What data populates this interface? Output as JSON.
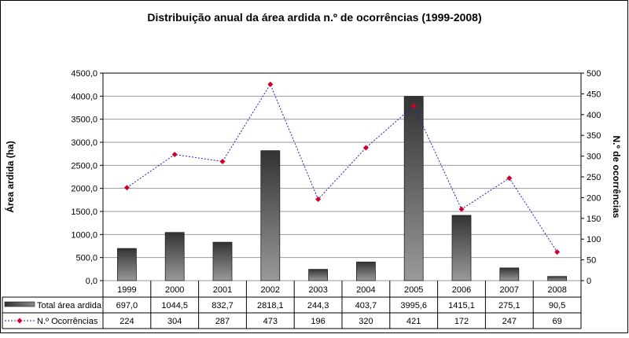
{
  "chart_data": {
    "type": "bar+line",
    "title": "Distribuição anual da área ardida n.º de ocorrências (1999-2008)",
    "ylabel": "Área ardida (ha)",
    "y2label": "N.º de ocorrências",
    "categories": [
      "1999",
      "2000",
      "2001",
      "2002",
      "2003",
      "2004",
      "2005",
      "2006",
      "2007",
      "2008"
    ],
    "ylim": [
      0,
      4500
    ],
    "y2lim": [
      0,
      500
    ],
    "yticks": [
      "0,0",
      "500,0",
      "1000,0",
      "1500,0",
      "2000,0",
      "2500,0",
      "3000,0",
      "3500,0",
      "4000,0",
      "4500,0"
    ],
    "y2ticks": [
      "0",
      "50",
      "100",
      "150",
      "200",
      "250",
      "300",
      "350",
      "400",
      "450",
      "500"
    ],
    "grid": true,
    "legend": "data-table",
    "series": [
      {
        "name": "Total área ardida",
        "type": "bar",
        "axis": "left",
        "color": "#555555",
        "values": [
          697.0,
          1044.5,
          832.7,
          2818.1,
          244.3,
          403.7,
          3995.6,
          1415.1,
          275.1,
          90.5
        ],
        "labels": [
          "697,0",
          "1044,5",
          "832,7",
          "2818,1",
          "244,3",
          "403,7",
          "3995,6",
          "1415,1",
          "275,1",
          "90,5"
        ]
      },
      {
        "name": "N.º Ocorrências",
        "type": "line",
        "axis": "right",
        "color": "#1f1fbf",
        "marker_color": "#d0002a",
        "values": [
          224,
          304,
          287,
          473,
          196,
          320,
          421,
          172,
          247,
          69
        ],
        "labels": [
          "224",
          "304",
          "287",
          "473",
          "196",
          "320",
          "421",
          "172",
          "247",
          "69"
        ]
      }
    ]
  }
}
